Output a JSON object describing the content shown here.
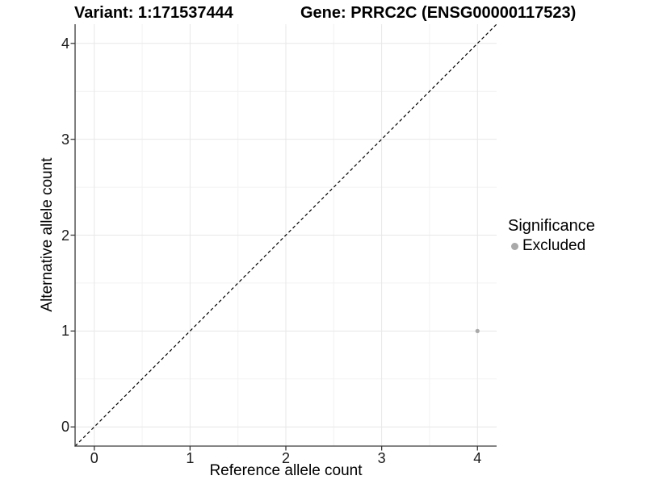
{
  "header": {
    "variant_title": "Variant: 1:171537444",
    "gene_title": "Gene: PRRC2C (ENSG00000117523)"
  },
  "chart_data": {
    "type": "scatter",
    "title": "Variant: 1:171537444  /  Gene: PRRC2C (ENSG00000117523)",
    "xlabel": "Reference allele count",
    "ylabel": "Alternative allele count",
    "xlim": [
      -0.2,
      4.2
    ],
    "ylim": [
      -0.2,
      4.2
    ],
    "x_ticks": [
      0,
      1,
      2,
      3,
      4
    ],
    "y_ticks": [
      0,
      1,
      2,
      3,
      4
    ],
    "x_tick_labels": [
      "0",
      "1",
      "2",
      "3",
      "4"
    ],
    "y_tick_labels": [
      "0",
      "1",
      "2",
      "3",
      "4"
    ],
    "x_minor_ticks": [
      0.5,
      1.5,
      2.5,
      3.5
    ],
    "y_minor_ticks": [
      0.5,
      1.5,
      2.5,
      3.5
    ],
    "grid": true,
    "points": [
      {
        "x": 4,
        "y": 1,
        "series": "Excluded"
      }
    ],
    "reference_line": {
      "style": "dashed",
      "from": [
        -0.2,
        -0.2
      ],
      "to": [
        4.2,
        4.2
      ],
      "description": "y = x identity line"
    },
    "legend": {
      "title": "Significance",
      "position": "right",
      "items": [
        {
          "label": "Excluded",
          "color": "#a9a9a9"
        }
      ]
    }
  },
  "colors": {
    "excluded_point": "#a9a9a9",
    "grid_major": "#e7e7e7",
    "grid_minor": "#f2f2f2",
    "axis_line": "#3a3a3a",
    "identity_line": "#000000",
    "tick_text": "#1a1a1a"
  }
}
